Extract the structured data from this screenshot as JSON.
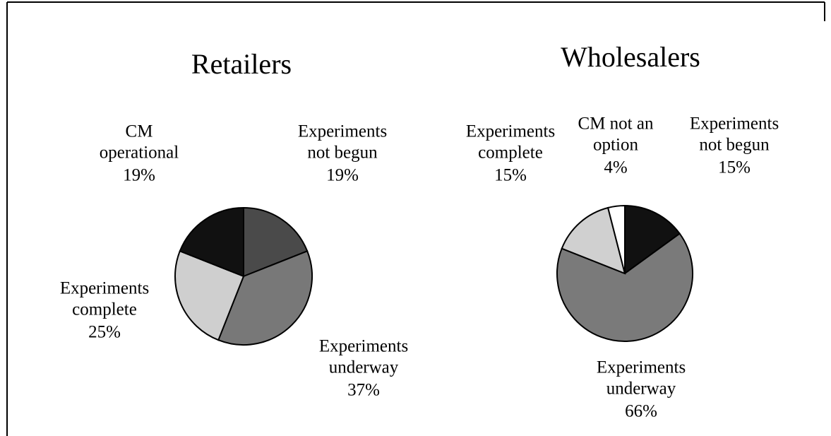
{
  "chart_data": [
    {
      "type": "pie",
      "title": "Retailers",
      "categories": [
        [
          "Experiments",
          "not begun"
        ],
        [
          "Experiments",
          "underway"
        ],
        [
          "Experiments",
          "complete"
        ],
        [
          "CM",
          "operational"
        ]
      ],
      "values": [
        19,
        37,
        25,
        19
      ],
      "value_labels": [
        "19%",
        "37%",
        "25%",
        "19%"
      ],
      "colors": [
        "#4a4a4a",
        "#787878",
        "#cfcfcf",
        "#111111"
      ]
    },
    {
      "type": "pie",
      "title": "Wholesalers",
      "categories": [
        [
          "Experiments",
          "not begun"
        ],
        [
          "Experiments",
          "underway"
        ],
        [
          "Experiments",
          "complete"
        ],
        [
          "CM not an",
          "option"
        ]
      ],
      "values": [
        15,
        66,
        15,
        4
      ],
      "value_labels": [
        "15%",
        "66%",
        "15%",
        "4%"
      ],
      "colors": [
        "#111111",
        "#7a7a7a",
        "#d0d0d0",
        "#ffffff"
      ]
    }
  ]
}
